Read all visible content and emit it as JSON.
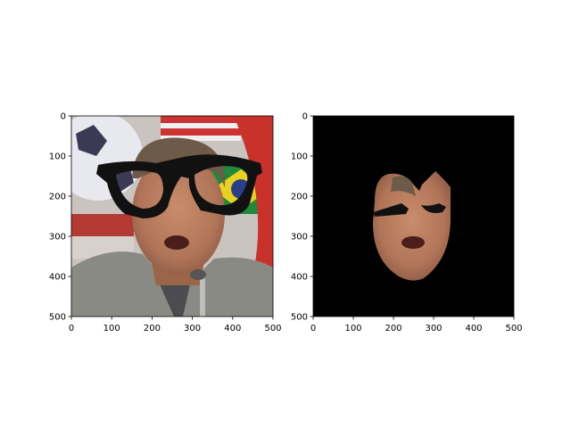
{
  "chart_data": [
    {
      "type": "image",
      "title": "",
      "xlabel": "",
      "ylabel": "",
      "xlim": [
        0,
        500
      ],
      "ylim": [
        500,
        0
      ],
      "x_ticks": [
        "0",
        "100",
        "200",
        "300",
        "400",
        "500"
      ],
      "y_ticks": [
        "0",
        "100",
        "200",
        "300",
        "400",
        "500"
      ],
      "content": "face photo with black eyeglasses overlay"
    },
    {
      "type": "image",
      "title": "",
      "xlabel": "",
      "ylabel": "",
      "xlim": [
        0,
        500
      ],
      "ylim": [
        500,
        0
      ],
      "x_ticks": [
        "0",
        "100",
        "200",
        "300",
        "400",
        "500"
      ],
      "y_ticks": [
        "0",
        "100",
        "200",
        "300",
        "400",
        "500"
      ],
      "content": "segmented face region on black background"
    }
  ],
  "colors": {
    "background": "#ffffff",
    "mask_background": "#000000",
    "skin": "#b87a5c",
    "suit": "#8a8a84",
    "hair": "#6e5a48",
    "frame": "#111111"
  }
}
